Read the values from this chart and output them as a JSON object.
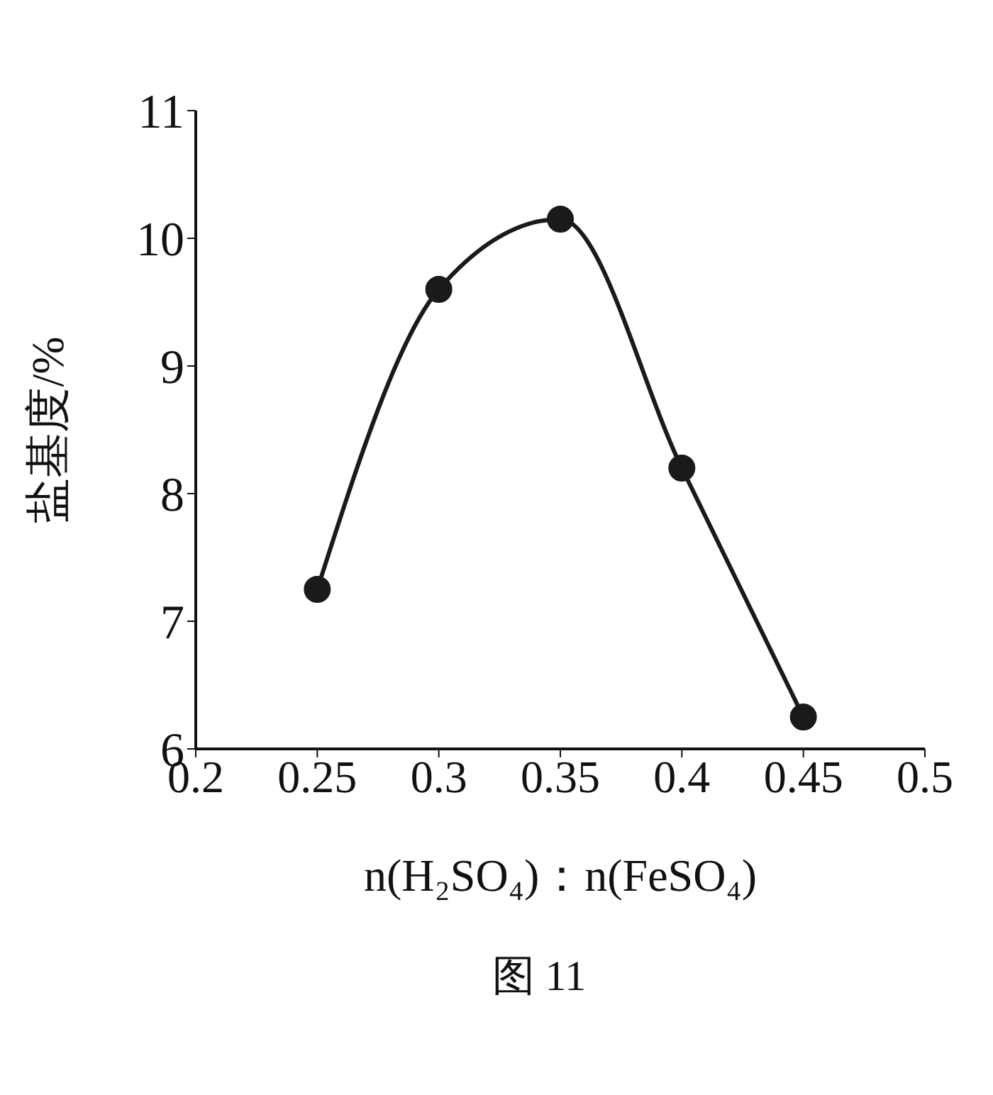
{
  "chart_data": {
    "type": "line",
    "xlabel": "n(H₂SO₄)：n(FeSO₄)",
    "ylabel": "盐基度/%",
    "annotations": [
      "图 11"
    ],
    "x": [
      0.25,
      0.3,
      0.35,
      0.4,
      0.45
    ],
    "series": [
      {
        "color": "#1a1a1a",
        "values": [
          7.25,
          9.6,
          10.15,
          8.2,
          6.25
        ]
      }
    ],
    "xlim": [
      0.2,
      0.5
    ],
    "xticks": [
      0.2,
      0.25,
      0.3,
      0.35,
      0.4,
      0.45,
      0.5
    ],
    "ylim": [
      6,
      11
    ],
    "yticks": [
      6,
      7,
      8,
      9,
      10,
      11
    ],
    "grid": false,
    "legend": false,
    "marker": "circle",
    "line_style": "solid"
  }
}
